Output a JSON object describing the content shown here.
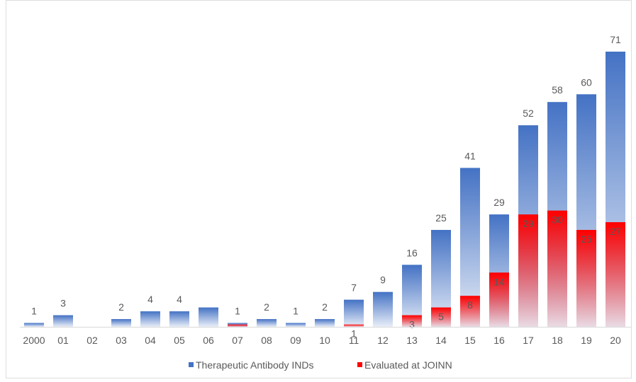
{
  "chart_data": {
    "type": "bar",
    "categories": [
      "2000",
      "01",
      "02",
      "03",
      "04",
      "05",
      "06",
      "07",
      "08",
      "09",
      "10",
      "11",
      "12",
      "13",
      "14",
      "15",
      "16",
      "17",
      "18",
      "19",
      "20"
    ],
    "series": [
      {
        "name": "Therapeutic Antibody INDs",
        "values": [
          1,
          3,
          0,
          2,
          4,
          4,
          5,
          1,
          2,
          1,
          2,
          7,
          9,
          16,
          25,
          41,
          29,
          52,
          58,
          60,
          71
        ],
        "value_labels": [
          "1",
          "3",
          "",
          "2",
          "4",
          "4",
          "",
          "1",
          "2",
          "1",
          "2",
          "7",
          "9",
          "16",
          "25",
          "41",
          "29",
          "52",
          "58",
          "60",
          "71"
        ],
        "color": "#4472c4"
      },
      {
        "name": "Evaluated at JOINN",
        "values": [
          0,
          0,
          0,
          0,
          0,
          0,
          0,
          0.6,
          0,
          0,
          0,
          0.6,
          0,
          3,
          5,
          8,
          14,
          29,
          30,
          25,
          27
        ],
        "value_labels": [
          "",
          "",
          "",
          "",
          "",
          "",
          "",
          "",
          "",
          "",
          "",
          "1",
          "",
          "3",
          "5",
          "8",
          "14",
          "29",
          "30",
          "25",
          "27"
        ],
        "color": "#ff0000"
      }
    ],
    "ylim": [
      0,
      71
    ],
    "xlabel": "",
    "ylabel": "",
    "grid": false,
    "legend": "bottom"
  }
}
